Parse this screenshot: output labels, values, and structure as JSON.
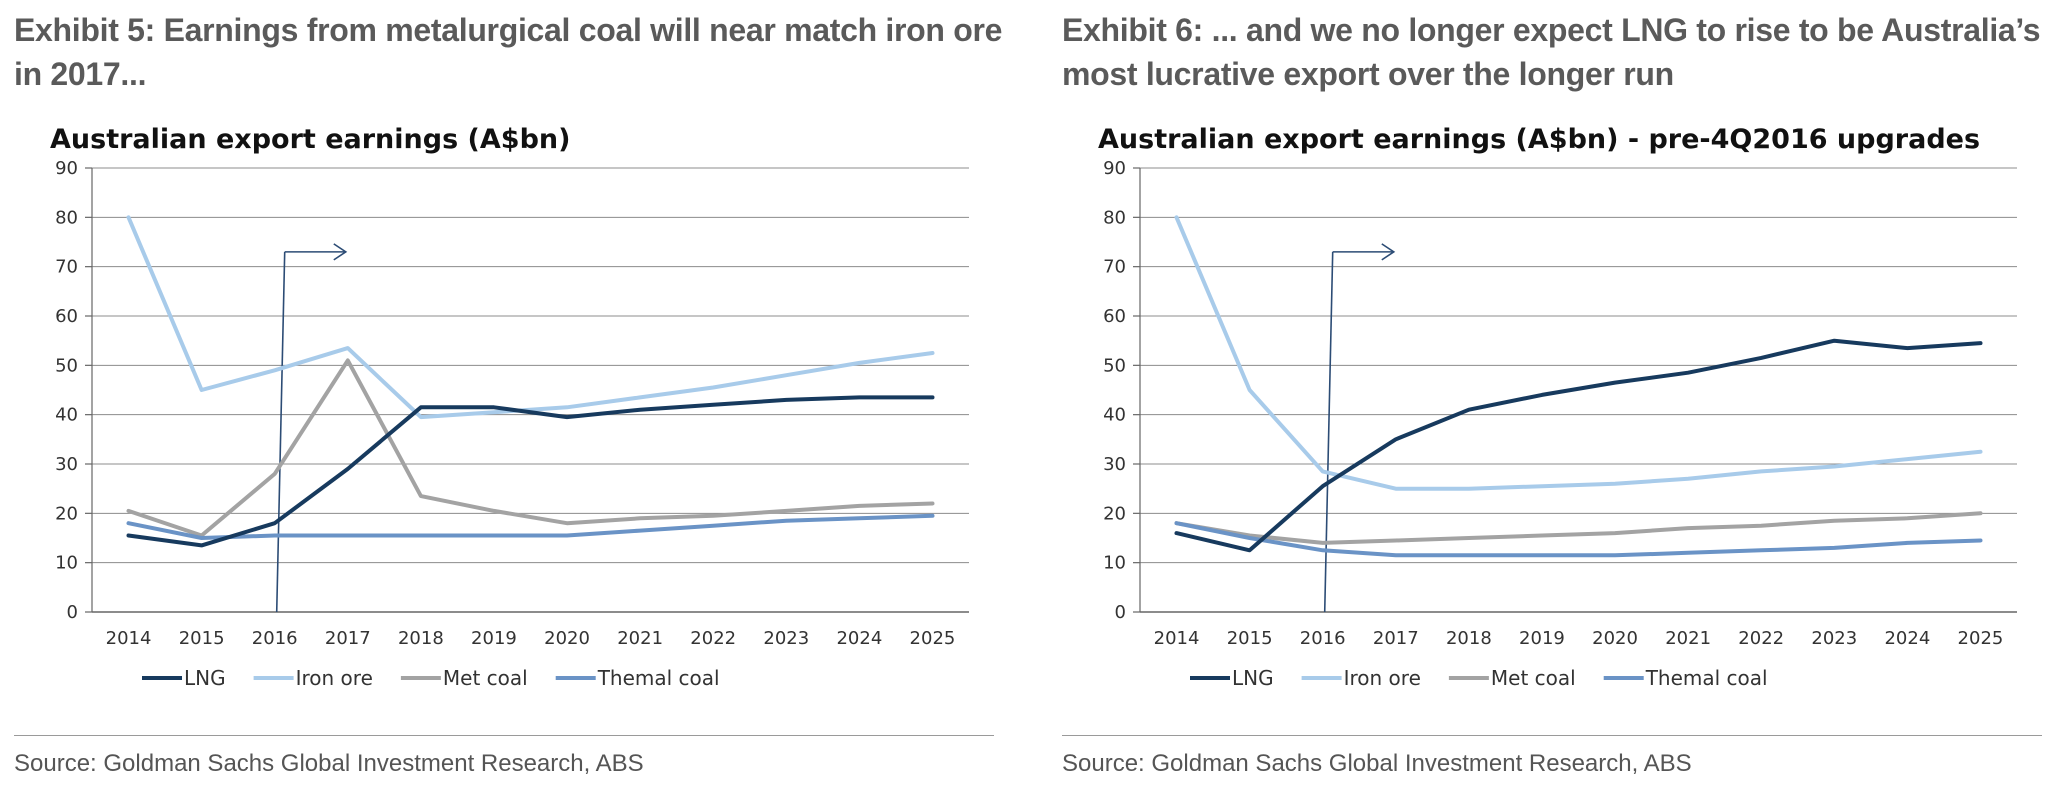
{
  "colors": {
    "LNG": "#173a5e",
    "Iron ore": "#a8cbea",
    "Met coal": "#a3a3a3",
    "Themal coal": "#6a93c6",
    "grid": "#8c8c8c",
    "axis": "#666666"
  },
  "chart_data": [
    {
      "exhibit_title": "Exhibit 5: Earnings from metalurgical coal will near match iron ore in 2017...",
      "type": "line",
      "title": "Australian export earnings (A$bn)",
      "xlabel": "",
      "ylabel": "",
      "ylim": [
        0,
        90
      ],
      "yticks": [
        "0",
        "10",
        "20",
        "30",
        "40",
        "50",
        "60",
        "70",
        "80",
        "90"
      ],
      "categories": [
        "2014",
        "2015",
        "2016",
        "2017",
        "2018",
        "2019",
        "2020",
        "2021",
        "2022",
        "2023",
        "2024",
        "2025"
      ],
      "series": [
        {
          "name": "LNG",
          "values": [
            15.5,
            13.5,
            18,
            29,
            41.5,
            41.5,
            39.5,
            41,
            42,
            43,
            43.5,
            43.5
          ]
        },
        {
          "name": "Iron ore",
          "values": [
            80,
            45,
            49,
            53.5,
            39.5,
            40.5,
            41.5,
            43.5,
            45.5,
            48,
            50.5,
            52.5
          ]
        },
        {
          "name": "Met coal",
          "values": [
            20.5,
            15.5,
            28,
            51,
            23.5,
            20.5,
            18,
            19,
            19.5,
            20.5,
            21.5,
            22
          ]
        },
        {
          "name": "Themal coal",
          "values": [
            18,
            15,
            15.5,
            15.5,
            15.5,
            15.5,
            15.5,
            16.5,
            17.5,
            18.5,
            19,
            19.5
          ]
        }
      ],
      "marker": {
        "x": "2016",
        "arrow_to": "2017",
        "arrow_level": 73
      },
      "source": "Source: Goldman Sachs Global Investment Research, ABS"
    },
    {
      "exhibit_title": "Exhibit 6: ... and we no longer expect LNG to rise to be Australia’s most lucrative export over the longer run",
      "type": "line",
      "title": "Australian export earnings (A$bn) - pre-4Q2016 upgrades",
      "xlabel": "",
      "ylabel": "",
      "ylim": [
        0,
        90
      ],
      "yticks": [
        "0",
        "10",
        "20",
        "30",
        "40",
        "50",
        "60",
        "70",
        "80",
        "90"
      ],
      "categories": [
        "2014",
        "2015",
        "2016",
        "2017",
        "2018",
        "2019",
        "2020",
        "2021",
        "2022",
        "2023",
        "2024",
        "2025"
      ],
      "series": [
        {
          "name": "LNG",
          "values": [
            16,
            12.5,
            25.5,
            35,
            41,
            44,
            46.5,
            48.5,
            51.5,
            55,
            53.5,
            54.5
          ]
        },
        {
          "name": "Iron ore",
          "values": [
            80,
            45,
            28.5,
            25,
            25,
            25.5,
            26,
            27,
            28.5,
            29.5,
            31,
            32.5
          ]
        },
        {
          "name": "Met coal",
          "values": [
            18,
            15.5,
            14,
            14.5,
            15,
            15.5,
            16,
            17,
            17.5,
            18.5,
            19,
            20
          ]
        },
        {
          "name": "Themal coal",
          "values": [
            18,
            15,
            12.5,
            11.5,
            11.5,
            11.5,
            11.5,
            12,
            12.5,
            13,
            14,
            14.5
          ]
        }
      ],
      "marker": {
        "x": "2016",
        "arrow_to": "2017",
        "arrow_level": 73
      },
      "source": "Source: Goldman Sachs Global Investment Research, ABS"
    }
  ]
}
